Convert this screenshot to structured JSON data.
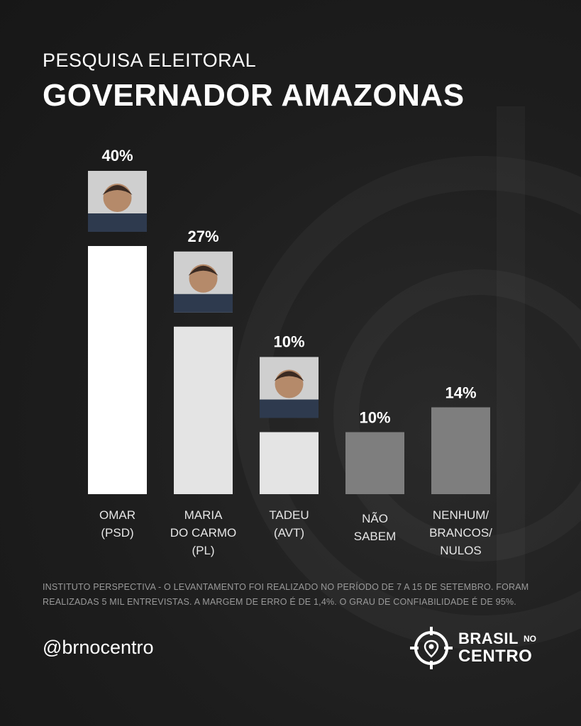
{
  "header": {
    "subtitle": "PESQUISA ELEITORAL",
    "title": "GOVERNADOR AMAZONAS"
  },
  "chart_data": {
    "type": "bar",
    "title": "GOVERNADOR AMAZONAS",
    "subtitle": "PESQUISA ELEITORAL",
    "categories": [
      [
        "OMAR",
        "(PSD)"
      ],
      [
        "MARIA",
        "DO CARMO",
        "(PL)"
      ],
      [
        "TADEU",
        "(AVT)"
      ],
      [
        "NÃO",
        "SABEM"
      ],
      [
        "NENHUM/",
        "BRANCOS/",
        "NULOS"
      ]
    ],
    "values": [
      40,
      27,
      10,
      10,
      14
    ],
    "value_labels": [
      "40%",
      "27%",
      "10%",
      "10%",
      "14%"
    ],
    "bar_colors": [
      "#ffffff",
      "#e4e4e4",
      "#e4e4e4",
      "#7e7e7e",
      "#7e7e7e"
    ],
    "has_photo": [
      true,
      true,
      true,
      false,
      false
    ],
    "ylim": [
      0,
      40
    ],
    "grid": false
  },
  "footnote": "INSTITUTO PERSPECTIVA - O LEVANTAMENTO FOI REALIZADO NO PERÍODO DE 7 A 15 DE SETEMBRO. FORAM REALIZADAS 5 MIL ENTREVISTAS. A MARGEM DE ERRO É DE 1,4%. O GRAU DE CONFIABILIDADE É DE 95%.",
  "handle": "@brnocentro",
  "logo": {
    "line1": "BRASIL",
    "small": "NO",
    "line2": "CENTRO",
    "icon": "crosshair-pin-icon"
  },
  "colors": {
    "background": "#1b1b1b",
    "text": "#ffffff",
    "footnote": "#9a9a9a"
  }
}
